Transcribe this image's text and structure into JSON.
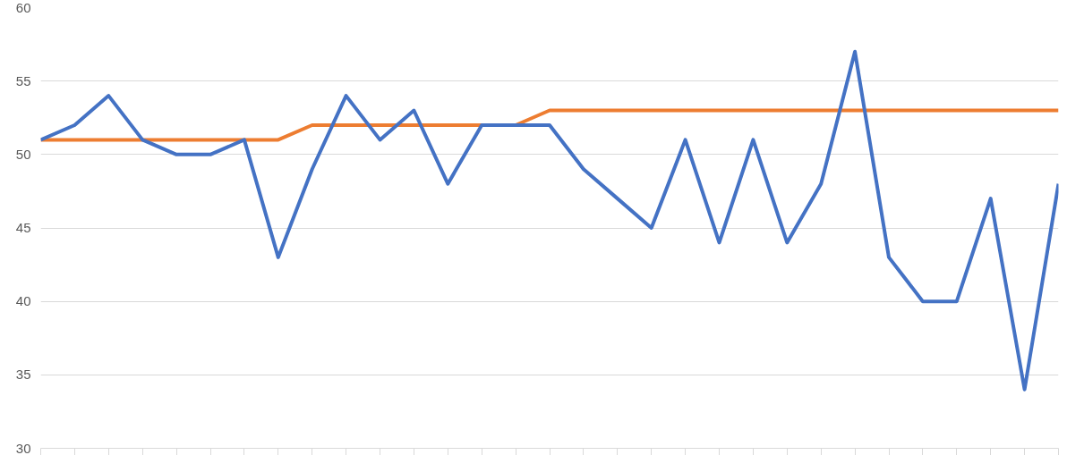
{
  "chart_data": {
    "type": "line",
    "categories": [
      null,
      null,
      null,
      null,
      null,
      null,
      null,
      null,
      null,
      null,
      null,
      null,
      null,
      null,
      null,
      null,
      null,
      null,
      null,
      null,
      null,
      null,
      null,
      null,
      null,
      null,
      null,
      null,
      null,
      null,
      null
    ],
    "ylim": [
      30,
      60
    ],
    "yticks": [
      30,
      35,
      40,
      45,
      50,
      55,
      60
    ],
    "grid": "y",
    "marker": "none",
    "line_style": "solid",
    "series": [
      {
        "color": "#ed7d31",
        "values": [
          51,
          51,
          51,
          51,
          51,
          51,
          51,
          51,
          52,
          52,
          52,
          52,
          52,
          52,
          52,
          53,
          53,
          53,
          53,
          53,
          53,
          53,
          53,
          53,
          53,
          53,
          53,
          53,
          53,
          53,
          53
        ]
      },
      {
        "color": "#4472c4",
        "values": [
          51,
          52,
          54,
          51,
          50,
          50,
          51,
          43,
          49,
          54,
          51,
          53,
          48,
          52,
          52,
          52,
          49,
          47,
          45,
          51,
          44,
          51,
          44,
          48,
          57,
          43,
          40,
          40,
          47,
          34,
          48
        ]
      }
    ]
  }
}
